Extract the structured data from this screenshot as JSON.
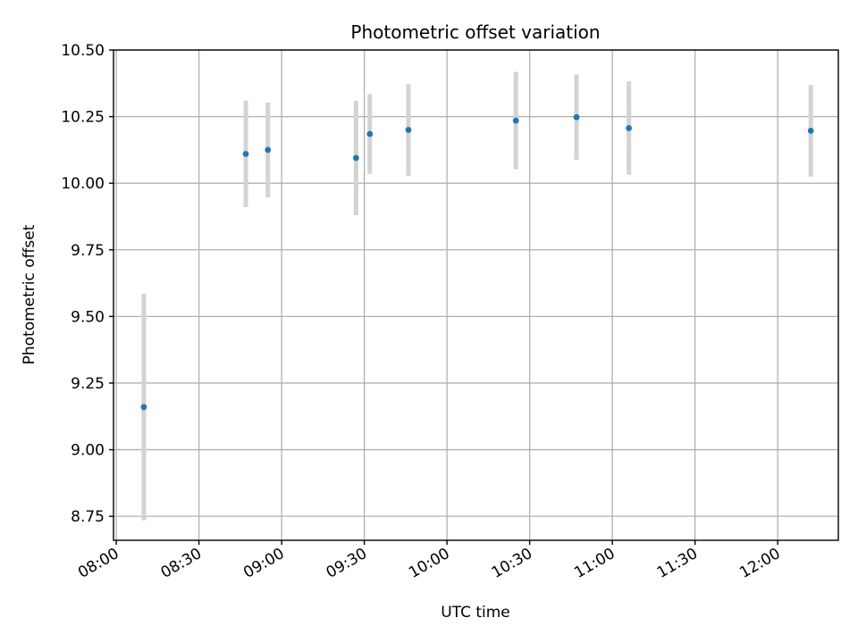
{
  "chart_data": {
    "type": "scatter",
    "title": "Photometric offset variation",
    "xlabel": "UTC time",
    "ylabel": "Photometric offset",
    "x_ticks": [
      "08:00",
      "08:30",
      "09:00",
      "09:30",
      "10:00",
      "10:30",
      "11:00",
      "11:30",
      "12:00"
    ],
    "y_ticks": [
      "8.75",
      "9.00",
      "9.25",
      "9.50",
      "9.75",
      "10.00",
      "10.25",
      "10.50"
    ],
    "xlim": [
      "07:59",
      "12:22"
    ],
    "ylim": [
      8.66,
      10.5
    ],
    "grid": true,
    "point_color": "#1f77b4",
    "errorbar_color": "#d3d3d3",
    "series": [
      {
        "x": [
          "08:10",
          "08:47",
          "08:55",
          "09:27",
          "09:32",
          "09:46",
          "10:25",
          "10:47",
          "11:06",
          "12:12"
        ],
        "y": [
          9.16,
          10.11,
          10.125,
          10.095,
          10.185,
          10.2,
          10.235,
          10.248,
          10.207,
          10.197
        ],
        "yerr": [
          0.425,
          0.2,
          0.178,
          0.215,
          0.15,
          0.172,
          0.183,
          0.16,
          0.175,
          0.172
        ]
      }
    ]
  }
}
